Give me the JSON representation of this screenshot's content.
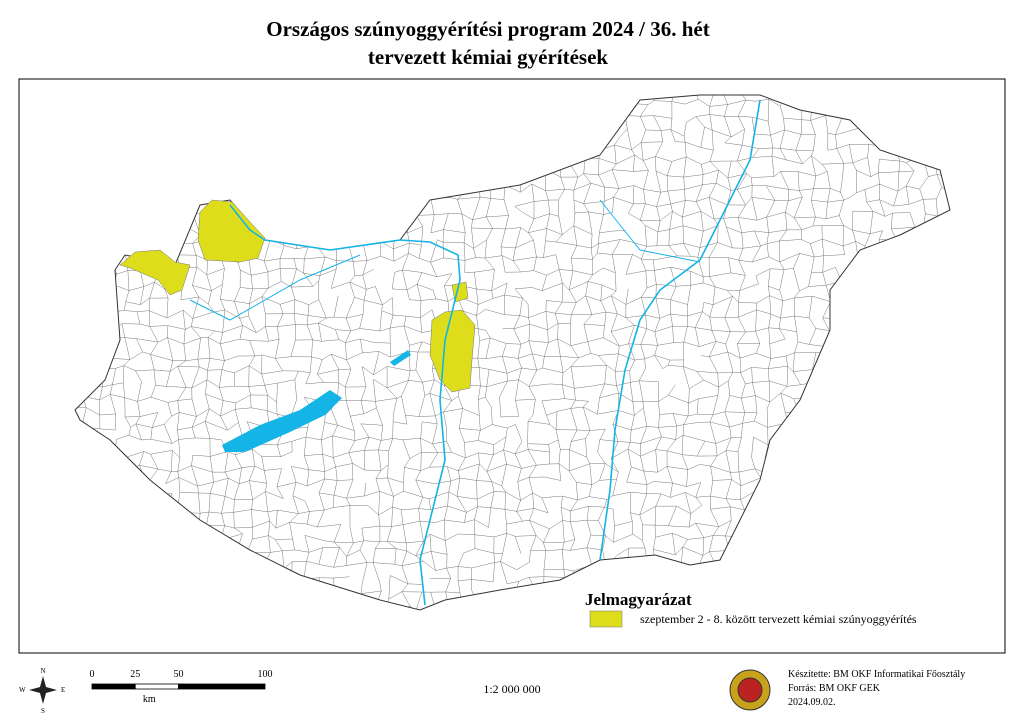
{
  "header": {
    "title": "Országos szúnyoggyérítési program 2024 / 36. hét",
    "subtitle": "tervezett kémiai gyérítések"
  },
  "legend": {
    "title": "Jelmagyarázat",
    "items": [
      {
        "label": "szeptember 2 - 8. között tervezett kémiai szúnyoggyérítés",
        "color": "#dddd1c"
      }
    ]
  },
  "compass": {
    "n": "N",
    "e": "E",
    "s": "S",
    "w": "W"
  },
  "scale_bar": {
    "ticks": [
      0,
      25,
      50,
      100
    ],
    "unit": "km"
  },
  "scale": "1:2 000 000",
  "credits": [
    "Készítette: BM OKF Informatikai Főosztály",
    "Forrás: BM OKF GEK",
    "2024.09.02."
  ]
}
